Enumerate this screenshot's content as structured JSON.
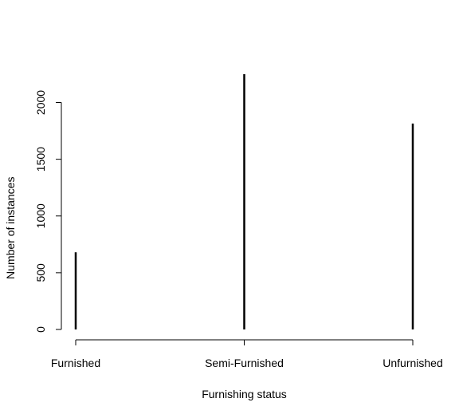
{
  "chart_data": {
    "type": "bar",
    "style": "histogram-lines",
    "title": "",
    "xlabel": "Furnishing status",
    "ylabel": "Number of instances",
    "categories": [
      "Furnished",
      "Semi-Furnished",
      "Unfurnished"
    ],
    "values": [
      680,
      2250,
      1815
    ],
    "yticks": [
      0,
      500,
      1000,
      1500,
      2000
    ],
    "ylim": [
      0,
      2250
    ],
    "grid": false,
    "legend": "none",
    "bar_color": "#000000"
  }
}
